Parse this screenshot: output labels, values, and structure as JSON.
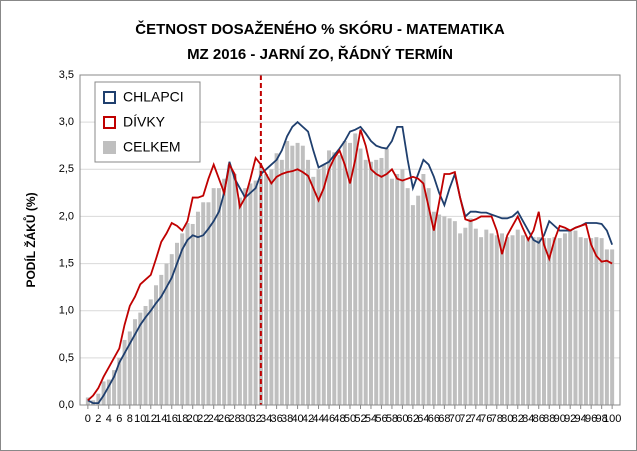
{
  "chart_data": {
    "type": "bar",
    "title": "ČETNOST DOSAŽENÉHO % SKÓRU - MATEMATIKA",
    "subtitle": "MZ 2016 - JARNÍ ZO, ŘÁDNÝ TERMÍN",
    "y_label": "PODÍL ŽÁKŮ (%)",
    "x": [
      0,
      1,
      2,
      3,
      4,
      5,
      6,
      7,
      8,
      9,
      10,
      11,
      12,
      13,
      14,
      15,
      16,
      17,
      18,
      19,
      20,
      21,
      22,
      23,
      24,
      25,
      26,
      27,
      28,
      29,
      30,
      31,
      32,
      33,
      34,
      35,
      36,
      37,
      38,
      39,
      40,
      41,
      42,
      43,
      44,
      45,
      46,
      47,
      48,
      49,
      50,
      51,
      52,
      53,
      54,
      55,
      56,
      57,
      58,
      59,
      60,
      61,
      62,
      63,
      64,
      65,
      66,
      67,
      68,
      69,
      70,
      71,
      72,
      73,
      74,
      75,
      76,
      77,
      78,
      79,
      80,
      81,
      82,
      83,
      84,
      85,
      86,
      87,
      88,
      89,
      90,
      91,
      92,
      93,
      94,
      95,
      96,
      97,
      98,
      99,
      100
    ],
    "series": [
      {
        "name": "CHLAPCI",
        "type": "line",
        "color": "#1f3f6e",
        "values": [
          0.05,
          0.02,
          0.02,
          0.1,
          0.2,
          0.3,
          0.45,
          0.55,
          0.65,
          0.75,
          0.85,
          0.93,
          1.0,
          1.08,
          1.15,
          1.25,
          1.35,
          1.5,
          1.65,
          1.75,
          1.8,
          1.78,
          1.8,
          1.87,
          1.95,
          2.05,
          2.25,
          2.58,
          2.4,
          2.3,
          2.2,
          2.25,
          2.3,
          2.45,
          2.5,
          2.55,
          2.6,
          2.7,
          2.85,
          2.95,
          3.0,
          2.95,
          2.9,
          2.7,
          2.52,
          2.55,
          2.58,
          2.65,
          2.72,
          2.8,
          2.9,
          2.92,
          2.95,
          2.88,
          2.8,
          2.75,
          2.73,
          2.72,
          2.8,
          2.95,
          2.95,
          2.6,
          2.3,
          2.45,
          2.6,
          2.55,
          2.42,
          2.25,
          2.12,
          2.3,
          2.45,
          2.2,
          2.0,
          2.05,
          2.05,
          2.04,
          2.04,
          2.02,
          2.0,
          1.98,
          1.98,
          2.0,
          2.05,
          1.95,
          1.85,
          1.75,
          1.72,
          1.8,
          1.95,
          1.9,
          1.85,
          1.85,
          1.85,
          1.88,
          1.9,
          1.93,
          1.93,
          1.93,
          1.92,
          1.85,
          1.7
        ]
      },
      {
        "name": "DÍVKY",
        "type": "line",
        "color": "#c00000",
        "values": [
          0.05,
          0.1,
          0.18,
          0.3,
          0.4,
          0.5,
          0.6,
          0.85,
          1.05,
          1.15,
          1.28,
          1.33,
          1.38,
          1.55,
          1.73,
          1.82,
          1.93,
          1.9,
          1.85,
          1.95,
          2.2,
          2.2,
          2.22,
          2.4,
          2.55,
          2.4,
          2.25,
          2.55,
          2.45,
          2.1,
          2.2,
          2.4,
          2.62,
          2.55,
          2.45,
          2.35,
          2.42,
          2.45,
          2.47,
          2.48,
          2.5,
          2.47,
          2.43,
          2.3,
          2.17,
          2.3,
          2.5,
          2.62,
          2.7,
          2.55,
          2.35,
          2.6,
          2.92,
          2.75,
          2.5,
          2.45,
          2.42,
          2.45,
          2.5,
          2.4,
          2.38,
          2.4,
          2.42,
          2.4,
          2.35,
          2.1,
          1.85,
          2.15,
          2.45,
          2.45,
          2.47,
          2.2,
          1.97,
          1.95,
          1.97,
          2.0,
          2.0,
          2.0,
          1.85,
          1.6,
          1.8,
          1.9,
          2.0,
          1.87,
          1.75,
          1.85,
          2.05,
          1.7,
          1.55,
          1.75,
          1.9,
          1.88,
          1.85,
          1.88,
          1.9,
          1.92,
          1.7,
          1.58,
          1.52,
          1.53,
          1.5
        ]
      },
      {
        "name": "CELKEM",
        "type": "bar",
        "color": "#bfbfbf",
        "values": [
          0.08,
          0.05,
          0.12,
          0.25,
          0.27,
          0.37,
          0.5,
          0.69,
          0.78,
          0.91,
          0.98,
          1.05,
          1.12,
          1.27,
          1.38,
          1.5,
          1.6,
          1.72,
          1.82,
          1.93,
          1.92,
          2.05,
          2.15,
          2.15,
          2.3,
          2.3,
          2.4,
          2.55,
          2.45,
          2.2,
          2.3,
          2.35,
          2.38,
          2.55,
          2.45,
          2.5,
          2.67,
          2.6,
          2.8,
          2.75,
          2.78,
          2.75,
          2.6,
          2.42,
          2.5,
          2.55,
          2.7,
          2.68,
          2.65,
          2.8,
          2.78,
          2.88,
          2.72,
          2.6,
          2.58,
          2.6,
          2.62,
          2.72,
          2.4,
          2.45,
          2.5,
          2.3,
          2.12,
          2.22,
          2.45,
          2.3,
          2.05,
          2.02,
          2.0,
          1.98,
          1.95,
          1.82,
          1.88,
          1.98,
          1.87,
          1.78,
          1.86,
          1.82,
          1.8,
          1.82,
          1.78,
          1.8,
          1.86,
          1.8,
          1.78,
          1.78,
          1.78,
          1.77,
          1.77,
          1.78,
          1.77,
          1.82,
          1.85,
          1.85,
          1.78,
          1.77,
          1.77,
          1.78,
          1.77,
          1.65,
          1.65
        ]
      }
    ],
    "reference_line_x": 33,
    "reference_line_color": "#c00000",
    "xlim": [
      -1.5,
      101.5
    ],
    "xticks": [
      0,
      2,
      4,
      6,
      8,
      10,
      12,
      14,
      16,
      18,
      20,
      22,
      24,
      26,
      28,
      30,
      32,
      34,
      36,
      38,
      40,
      42,
      44,
      46,
      48,
      50,
      52,
      54,
      56,
      58,
      60,
      62,
      64,
      66,
      68,
      70,
      72,
      74,
      76,
      78,
      80,
      82,
      84,
      86,
      88,
      90,
      92,
      94,
      96,
      98,
      100
    ],
    "ylim": [
      0,
      3.5
    ],
    "yticks": [
      {
        "value": 0,
        "label": "0,0"
      },
      {
        "value": 0.5,
        "label": "0,5"
      },
      {
        "value": 1,
        "label": "1,0"
      },
      {
        "value": 1.5,
        "label": "1,5"
      },
      {
        "value": 2,
        "label": "2,0"
      },
      {
        "value": 2.5,
        "label": "2,5"
      },
      {
        "value": 3,
        "label": "3,0"
      },
      {
        "value": 3.5,
        "label": "3,5"
      }
    ],
    "grid": true,
    "legend": "upper left"
  }
}
